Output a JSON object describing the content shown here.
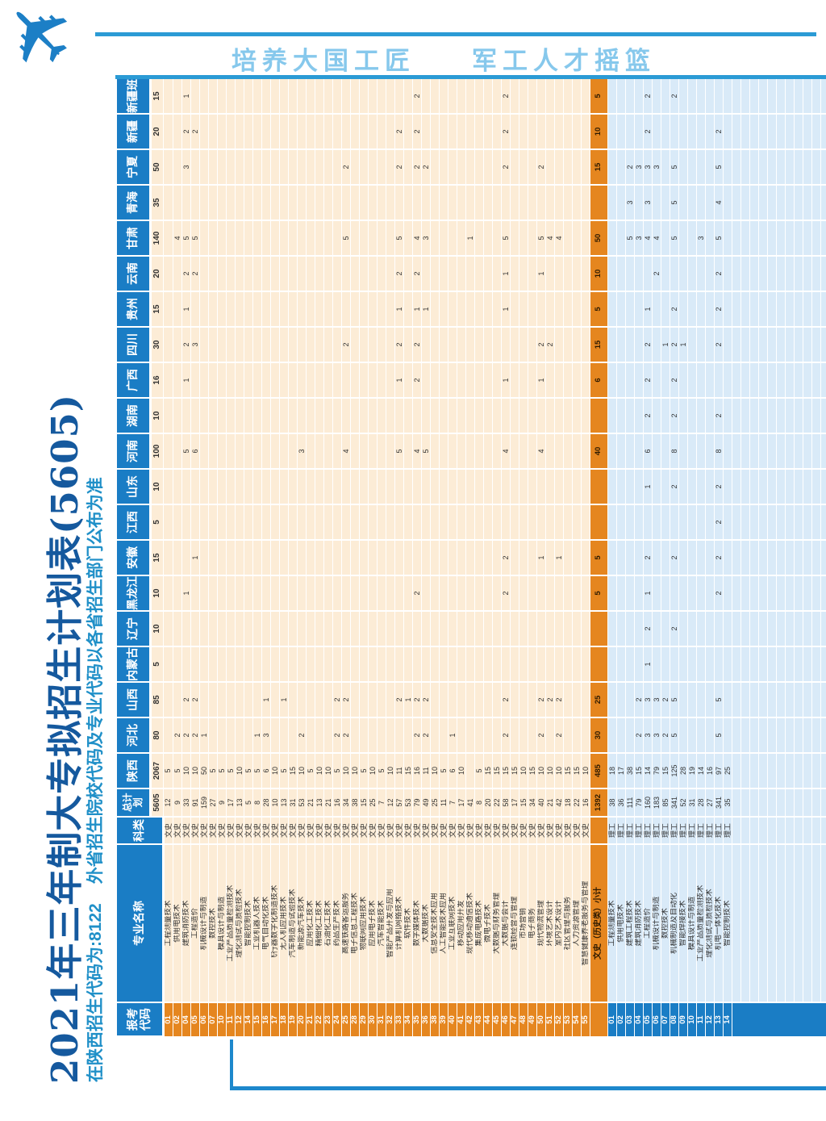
{
  "banner": {
    "slogan_left": "培养大国工匠",
    "slogan_right": "军工人才摇篮"
  },
  "icons": {
    "plane": "✈"
  },
  "title": {
    "main": "2021年三年制大专拟招生计划表(5605)",
    "sub1": "在陕西招生代码为:8122",
    "sub2": "外省招生院校代码及专业代码以各省招生部门公布为准"
  },
  "colors": {
    "header_blue": "#1a7dc5",
    "orange": "#e5861f",
    "subtotal_code_orange": "#eda55c",
    "cream": "#fcecd6",
    "light_blue": "#d9eaf8",
    "title_blue": "#15599e",
    "subtitle_blue": "#2090c8",
    "slogan_blue": "#86c8ec",
    "line_blue": "#2b9bd5"
  },
  "table": {
    "header": {
      "code": "报考代码",
      "name": "专业名称",
      "cat": "科类",
      "total": "总计划"
    },
    "provinces": [
      "陕西",
      "河北",
      "山西",
      "内蒙古",
      "辽宁",
      "黑龙江",
      "安徽",
      "江西",
      "山东",
      "河南",
      "湖南",
      "广西",
      "四川",
      "贵州",
      "云南",
      "甘肃",
      "青海",
      "宁夏",
      "新疆",
      "新疆班"
    ],
    "totals_row": {
      "total": 5605,
      "v": {
        "陕西": 2067,
        "河北": 80,
        "山西": 85,
        "内蒙古": 5,
        "辽宁": 10,
        "黑龙江": 10,
        "安徽": 15,
        "江西": 5,
        "山东": 10,
        "河南": 100,
        "湖南": 10,
        "广西": 16,
        "四川": 30,
        "贵州": 15,
        "云南": 20,
        "甘肃": 140,
        "青海": 35,
        "宁夏": 50,
        "新疆": 20,
        "新疆班": 15
      }
    },
    "wenshi_rows": [
      {
        "code": "01",
        "name": "工程测量技术",
        "cat": "文史",
        "total": 12,
        "v": {
          "陕西": 5
        }
      },
      {
        "code": "02",
        "name": "供用电技术",
        "cat": "文史",
        "total": 9,
        "v": {
          "陕西": 5,
          "甘肃": 4,
          "河北": 2
        }
      },
      {
        "code": "04",
        "name": "建筑消防技术",
        "cat": "文史",
        "total": 33,
        "v": {
          "陕西": 10,
          "新疆班": 1,
          "新疆": 2,
          "宁夏": 3,
          "甘肃": 5,
          "云南": 2,
          "贵州": 1,
          "四川": 2,
          "广西": 1,
          "河南": 5,
          "黑龙江": 1,
          "山西": 2,
          "河北": 2
        }
      },
      {
        "code": "05",
        "name": "工程造价",
        "cat": "文史",
        "total": 91,
        "v": {
          "陕西": 10,
          "新疆": 2,
          "甘肃": 5,
          "云南": 2,
          "四川": 3,
          "河南": 6,
          "安徽": 1,
          "山西": 2,
          "河北": 2
        }
      },
      {
        "code": "06",
        "name": "机械设计与制造",
        "cat": "文史",
        "total": 159,
        "v": {
          "陕西": 50,
          "河北": 1
        }
      },
      {
        "code": "07",
        "name": "数控技术",
        "cat": "文史",
        "total": 27,
        "v": {
          "陕西": 5
        }
      },
      {
        "code": "10",
        "name": "模具设计与制造",
        "cat": "文史",
        "total": 9,
        "v": {
          "陕西": 5
        }
      },
      {
        "code": "11",
        "name": "工业产品质量检测技术",
        "cat": "文史",
        "total": 17,
        "v": {
          "陕西": 5
        }
      },
      {
        "code": "12",
        "name": "理化测试与质检技术",
        "cat": "文史",
        "total": 13,
        "v": {
          "陕西": 10
        }
      },
      {
        "code": "14",
        "name": "智能控制技术",
        "cat": "文史",
        "total": 5,
        "v": {
          "陕西": 5
        }
      },
      {
        "code": "15",
        "name": "工业机器人技术",
        "cat": "文史",
        "total": 8,
        "v": {
          "陕西": 5,
          "河北": 1
        }
      },
      {
        "code": "16",
        "name": "电气自动化技术",
        "cat": "文史",
        "total": 28,
        "v": {
          "陕西": 6,
          "山西": 1,
          "河北": 3
        }
      },
      {
        "code": "17",
        "name": "飞行器数字化制造技术",
        "cat": "文史",
        "total": 10,
        "v": {
          "陕西": 10
        }
      },
      {
        "code": "18",
        "name": "无人机应用技术",
        "cat": "文史",
        "total": 13,
        "v": {
          "陕西": 5,
          "山西": 1
        }
      },
      {
        "code": "19",
        "name": "汽车制造与试验技术",
        "cat": "文史",
        "total": 31,
        "v": {
          "陕西": 15
        }
      },
      {
        "code": "20",
        "name": "新能源汽车技术",
        "cat": "文史",
        "total": 53,
        "v": {
          "陕西": 10,
          "河南": 3,
          "河北": 2
        }
      },
      {
        "code": "21",
        "name": "应用化工技术",
        "cat": "文史",
        "total": 21,
        "v": {
          "陕西": 5
        }
      },
      {
        "code": "22",
        "name": "精细化工技术",
        "cat": "文史",
        "total": 13,
        "v": {
          "陕西": 10
        }
      },
      {
        "code": "23",
        "name": "石油化工技术",
        "cat": "文史",
        "total": 21,
        "v": {
          "陕西": 10
        }
      },
      {
        "code": "24",
        "name": "药品生产技术",
        "cat": "文史",
        "total": 16,
        "v": {
          "陕西": 5,
          "山西": 2,
          "河北": 2
        }
      },
      {
        "code": "25",
        "name": "高速铁路客运服务",
        "cat": "文史",
        "total": 34,
        "v": {
          "陕西": 10,
          "宁夏": 2,
          "甘肃": 5,
          "四川": 2,
          "河南": 4,
          "山西": 2,
          "河北": 2
        }
      },
      {
        "code": "28",
        "name": "电子信息工程技术",
        "cat": "文史",
        "total": 38,
        "v": {
          "陕西": 10
        }
      },
      {
        "code": "29",
        "name": "物联网应用技术",
        "cat": "文史",
        "total": 15,
        "v": {
          "陕西": 5
        }
      },
      {
        "code": "30",
        "name": "应用电子技术",
        "cat": "文史",
        "total": 25,
        "v": {
          "陕西": 10
        }
      },
      {
        "code": "31",
        "name": "汽车智能技术",
        "cat": "文史",
        "total": 7,
        "v": {
          "陕西": 5
        }
      },
      {
        "code": "32",
        "name": "智能产品开发与应用",
        "cat": "文史",
        "total": 12,
        "v": {
          "陕西": 10
        }
      },
      {
        "code": "33",
        "name": "计算机网络技术",
        "cat": "文史",
        "total": 57,
        "v": {
          "陕西": 11,
          "新疆": 2,
          "宁夏": 2,
          "甘肃": 5,
          "云南": 2,
          "贵州": 1,
          "四川": 2,
          "广西": 1,
          "河南": 5,
          "山西": 2
        }
      },
      {
        "code": "34",
        "name": "软件技术",
        "cat": "文史",
        "total": 53,
        "v": {
          "陕西": 15,
          "山西": 1
        }
      },
      {
        "code": "35",
        "name": "数字媒体技术",
        "cat": "文史",
        "total": 79,
        "v": {
          "陕西": 16,
          "新疆班": 2,
          "新疆": 2,
          "宁夏": 2,
          "甘肃": 4,
          "云南": 2,
          "贵州": 1,
          "四川": 2,
          "广西": 2,
          "河南": 4,
          "黑龙江": 2,
          "山西": 2,
          "河北": 2
        }
      },
      {
        "code": "36",
        "name": "大数据技术",
        "cat": "文史",
        "total": 49,
        "v": {
          "陕西": 11,
          "宁夏": 2,
          "甘肃": 3,
          "贵州": 1,
          "河南": 5,
          "山西": 2,
          "河北": 2
        }
      },
      {
        "code": "38",
        "name": "信息安全技术应用",
        "cat": "文史",
        "total": 25,
        "v": {
          "陕西": 10
        }
      },
      {
        "code": "39",
        "name": "人工智能技术应用",
        "cat": "文史",
        "total": 11,
        "v": {
          "陕西": 5
        }
      },
      {
        "code": "40",
        "name": "工业互联网技术",
        "cat": "文史",
        "total": 7,
        "v": {
          "陕西": 6,
          "河北": 1
        }
      },
      {
        "code": "41",
        "name": "移动应用开发",
        "cat": "文史",
        "total": 17,
        "v": {
          "陕西": 10
        }
      },
      {
        "code": "42",
        "name": "现代移动通信技术",
        "cat": "文史",
        "total": 41,
        "v": {
          "甘肃": 1
        }
      },
      {
        "code": "43",
        "name": "集成电路技术",
        "cat": "文史",
        "total": 8,
        "v": {
          "陕西": 5
        }
      },
      {
        "code": "44",
        "name": "微电子技术",
        "cat": "文史",
        "total": 20,
        "v": {
          "陕西": 15
        }
      },
      {
        "code": "45",
        "name": "大数据与财务管理",
        "cat": "文史",
        "total": 22,
        "v": {
          "陕西": 15
        }
      },
      {
        "code": "46",
        "name": "大数据与会计",
        "cat": "文史",
        "total": 58,
        "v": {
          "陕西": 15,
          "新疆班": 2,
          "新疆": 2,
          "宁夏": 2,
          "甘肃": 5,
          "云南": 1,
          "贵州": 1,
          "广西": 1,
          "河南": 4,
          "安徽": 2,
          "黑龙江": 2,
          "山西": 2,
          "河北": 2
        }
      },
      {
        "code": "47",
        "name": "连锁经营与管理",
        "cat": "文史",
        "total": 17,
        "v": {
          "陕西": 15
        }
      },
      {
        "code": "48",
        "name": "市场营销",
        "cat": "文史",
        "total": 15,
        "v": {
          "陕西": 10
        }
      },
      {
        "code": "49",
        "name": "电子商务",
        "cat": "文史",
        "total": 34,
        "v": {
          "陕西": 15
        }
      },
      {
        "code": "50",
        "name": "现代物流管理",
        "cat": "文史",
        "total": 40,
        "v": {
          "陕西": 10,
          "宁夏": 2,
          "甘肃": 5,
          "云南": 1,
          "四川": 2,
          "广西": 1,
          "河南": 4,
          "安徽": 1,
          "山西": 2,
          "河北": 2
        }
      },
      {
        "code": "51",
        "name": "环境艺术设计",
        "cat": "文史",
        "total": 21,
        "v": {
          "陕西": 10,
          "甘肃": 4,
          "四川": 2,
          "山西": 2
        }
      },
      {
        "code": "52",
        "name": "室内艺术设计",
        "cat": "文史",
        "total": 42,
        "v": {
          "陕西": 10,
          "甘肃": 4,
          "安徽": 1,
          "山西": 2,
          "河北": 2
        }
      },
      {
        "code": "53",
        "name": "社区管理与服务",
        "cat": "文史",
        "total": 18,
        "v": {
          "陕西": 15
        }
      },
      {
        "code": "54",
        "name": "人力资源管理",
        "cat": "文史",
        "total": 22,
        "v": {
          "陕西": 15
        }
      },
      {
        "code": "55",
        "name": "智慧健康养老服务与管理",
        "cat": "文史",
        "total": 16,
        "v": {
          "陕西": 10
        }
      }
    ],
    "subtotal_row": {
      "name": "文史（历史类）小计",
      "total": 1392,
      "v": {
        "陕西": 485,
        "河北": 30,
        "山西": 25,
        "黑龙江": 5,
        "安徽": 5,
        "河南": 40,
        "广西": 6,
        "四川": 15,
        "贵州": 5,
        "云南": 10,
        "甘肃": 50,
        "宁夏": 15,
        "新疆": 10,
        "新疆班": 5
      }
    },
    "ligong_rows": [
      {
        "code": "01",
        "name": "工程测量技术",
        "cat": "理工",
        "total": 38,
        "v": {
          "陕西": 18
        }
      },
      {
        "code": "02",
        "name": "供用电技术",
        "cat": "理工",
        "total": 36,
        "v": {
          "陕西": 17
        }
      },
      {
        "code": "03",
        "name": "建筑工程技术",
        "cat": "理工",
        "total": 111,
        "v": {
          "陕西": 38,
          "宁夏": 2,
          "青海": 3,
          "甘肃": 5
        }
      },
      {
        "code": "04",
        "name": "建筑消防技术",
        "cat": "理工",
        "total": 79,
        "v": {
          "陕西": 15,
          "宁夏": 3,
          "甘肃": 3,
          "山西": 2,
          "河北": 2
        }
      },
      {
        "code": "05",
        "name": "工程造价",
        "cat": "理工",
        "total": 160,
        "v": {
          "陕西": 14,
          "新疆班": 2,
          "新疆": 2,
          "宁夏": 3,
          "青海": 3,
          "甘肃": 4,
          "贵州": 1,
          "四川": 2,
          "广西": 2,
          "湖南": 2,
          "河南": 6,
          "山东": 1,
          "安徽": 2,
          "黑龙江": 1,
          "辽宁": 2,
          "内蒙古": 1,
          "山西": 3,
          "河北": 3
        }
      },
      {
        "code": "06",
        "name": "机械设计与制造",
        "cat": "理工",
        "total": 183,
        "v": {
          "陕西": 79,
          "宁夏": 3,
          "甘肃": 4,
          "云南": 2,
          "山西": 3,
          "河北": 3
        }
      },
      {
        "code": "07",
        "name": "数控技术",
        "cat": "理工",
        "total": 85,
        "v": {
          "陕西": 15,
          "四川": 1,
          "山西": 2,
          "河北": 2
        }
      },
      {
        "code": "08",
        "name": "机械制造及自动化",
        "cat": "理工",
        "total": 341,
        "v": {
          "陕西": 125,
          "新疆班": 2,
          "宁夏": 5,
          "青海": 5,
          "甘肃": 5,
          "贵州": 2,
          "四川": 2,
          "广西": 2,
          "湖南": 2,
          "河南": 8,
          "山东": 2,
          "安徽": 2,
          "辽宁": 2,
          "山西": 5,
          "河北": 5
        }
      },
      {
        "code": "09",
        "name": "智能焊接技术",
        "cat": "理工",
        "total": 52,
        "v": {
          "陕西": 28,
          "四川": 1
        }
      },
      {
        "code": "10",
        "name": "模具设计与制造",
        "cat": "理工",
        "total": 31,
        "v": {
          "陕西": 19
        }
      },
      {
        "code": "11",
        "name": "工业产品质量检测技术",
        "cat": "理工",
        "total": 28,
        "v": {
          "陕西": 14,
          "甘肃": 3
        }
      },
      {
        "code": "12",
        "name": "理化测试与质检技术",
        "cat": "理工",
        "total": 27,
        "v": {
          "陕西": 16
        }
      },
      {
        "code": "13",
        "name": "机电一体化技术",
        "cat": "理工",
        "total": 341,
        "v": {
          "陕西": 97,
          "新疆": 2,
          "宁夏": 5,
          "青海": 4,
          "甘肃": 5,
          "云南": 2,
          "贵州": 2,
          "四川": 2,
          "湖南": 2,
          "河南": 8,
          "山东": 2,
          "江西": 2,
          "安徽": 2,
          "黑龙江": 2,
          "山西": 5,
          "河北": 5
        }
      },
      {
        "code": "14",
        "name": "智能控制技术",
        "cat": "理工",
        "total": 35,
        "v": {
          "陕西": 25
        }
      }
    ]
  }
}
